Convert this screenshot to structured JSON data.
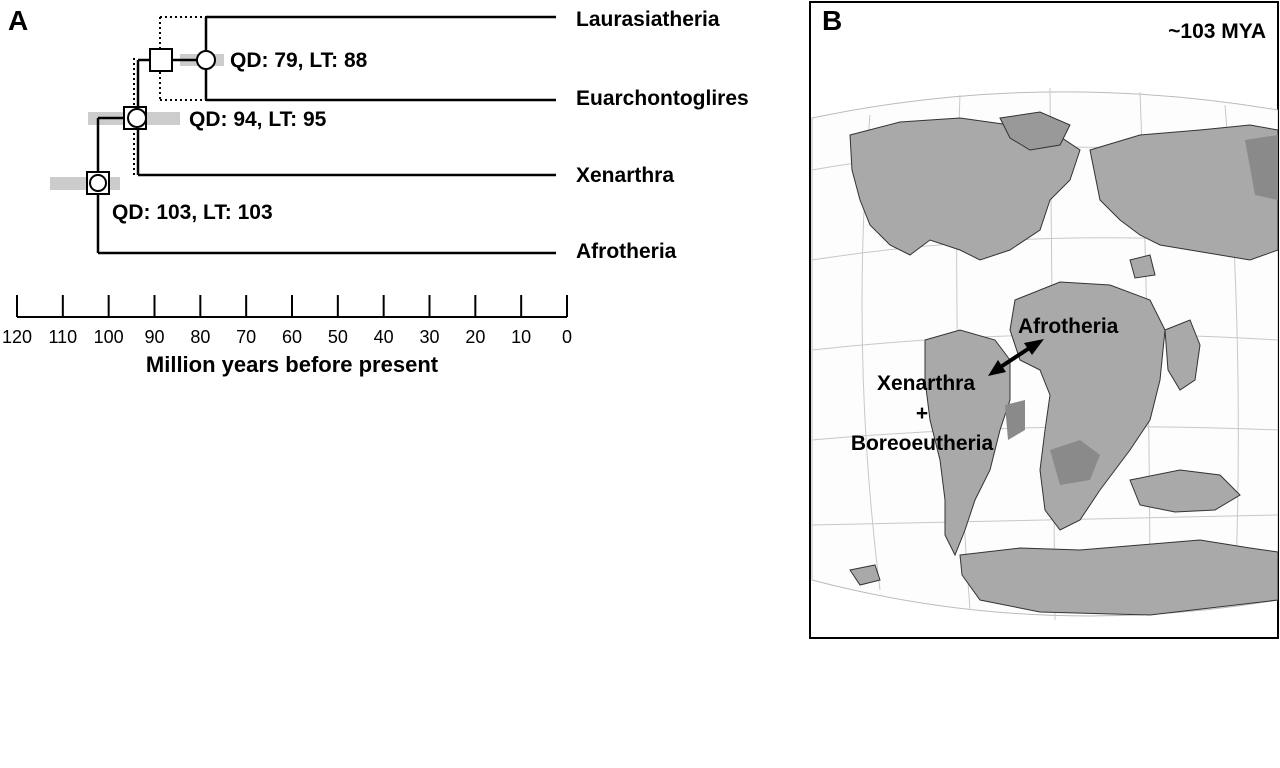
{
  "panel_a": {
    "label": "A",
    "taxa": [
      "Laurasiatheria",
      "Euarchontoglires",
      "Xenarthra",
      "Afrotheria"
    ],
    "node_labels": [
      "QD: 79, LT: 88",
      "QD: 94, LT: 95",
      "QD: 103, LT: 103"
    ],
    "axis": {
      "title": "Million years before present",
      "ticks": [
        "120",
        "110",
        "100",
        "90",
        "80",
        "70",
        "60",
        "50",
        "40",
        "30",
        "20",
        "10",
        "0"
      ]
    }
  },
  "panel_b": {
    "label": "B",
    "age": "~103 MYA",
    "labels": {
      "afrotheria": "Afrotheria",
      "xenarthra": "Xenarthra",
      "plus": "+",
      "boreoeutheria": "Boreoeutheria"
    }
  },
  "colors": {
    "line": "#000000",
    "ci_bar": "#cccccc",
    "land": "#a9a9a9",
    "land_dark": "#8a8a8a",
    "grid": "#c8c8c8"
  }
}
